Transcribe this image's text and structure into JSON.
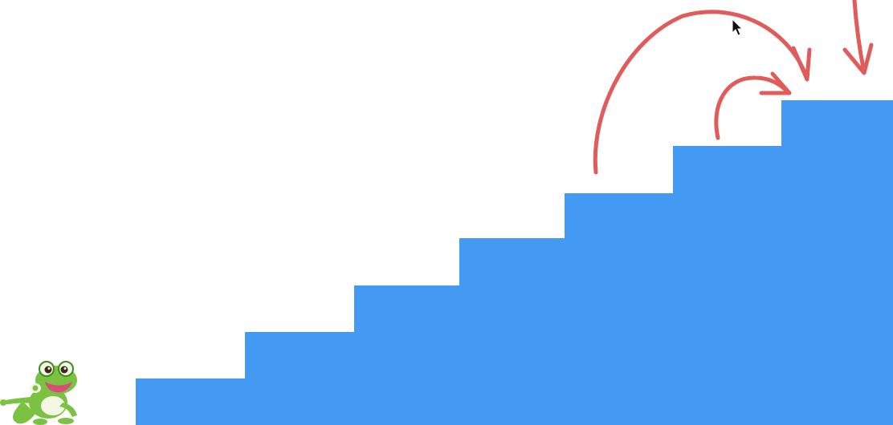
{
  "diagram": {
    "step_count": 7,
    "colors": {
      "stairs": "#4499F2",
      "arrows": "#E25B5B",
      "frog_body": "#7CC242",
      "frog_dark": "#3F8A22",
      "frog_belly": "#F3F7E4",
      "frog_mouth": "#D94E77",
      "background": "#FFFFFF"
    },
    "icons": {
      "character": "frog-icon",
      "pointer": "mouse-cursor-icon"
    },
    "arrows": {
      "count": 3,
      "meaning": [
        "jump-two-steps",
        "jump-one-step",
        "arrive-from-above"
      ]
    }
  }
}
